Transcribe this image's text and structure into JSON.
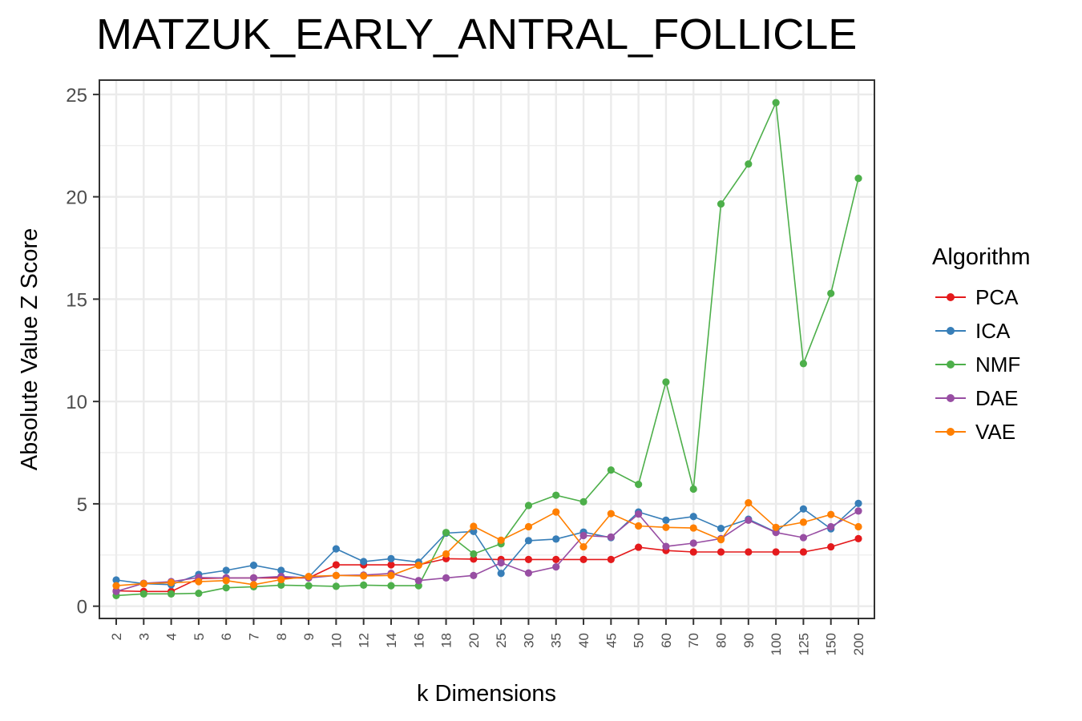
{
  "chart_data": {
    "type": "line",
    "title": "MATZUK_EARLY_ANTRAL_FOLLICLE",
    "xlabel": "k Dimensions",
    "ylabel": "Absolute Value Z Score",
    "categories": [
      "2",
      "3",
      "4",
      "5",
      "6",
      "7",
      "8",
      "9",
      "10",
      "12",
      "14",
      "16",
      "18",
      "20",
      "25",
      "30",
      "35",
      "40",
      "45",
      "50",
      "60",
      "70",
      "80",
      "90",
      "100",
      "125",
      "150",
      "200"
    ],
    "ylim": [
      -0.6,
      25.7
    ],
    "yticks": [
      0,
      5,
      10,
      15,
      20,
      25
    ],
    "grid": true,
    "legend": {
      "title": "Algorithm",
      "position": "right"
    },
    "series": [
      {
        "name": "PCA",
        "color": "#E41A1C",
        "values": [
          0.75,
          0.72,
          0.72,
          1.35,
          1.38,
          1.38,
          1.38,
          1.38,
          2.02,
          2.02,
          2.02,
          2.02,
          2.32,
          2.3,
          2.28,
          2.28,
          2.28,
          2.28,
          2.28,
          2.88,
          2.72,
          2.65,
          2.65,
          2.65,
          2.65,
          2.65,
          2.9,
          3.3
        ]
      },
      {
        "name": "ICA",
        "color": "#377EB8",
        "values": [
          1.28,
          1.1,
          1.05,
          1.55,
          1.75,
          2.0,
          1.75,
          1.42,
          2.8,
          2.18,
          2.32,
          2.15,
          3.57,
          3.65,
          1.6,
          3.2,
          3.28,
          3.62,
          3.35,
          4.6,
          4.2,
          4.38,
          3.8,
          4.25,
          3.62,
          4.75,
          3.78,
          5.02
        ]
      },
      {
        "name": "NMF",
        "color": "#4DAF4A",
        "values": [
          0.52,
          0.6,
          0.6,
          0.63,
          0.9,
          0.95,
          1.03,
          1.0,
          0.97,
          1.03,
          1.0,
          1.0,
          3.6,
          2.55,
          3.05,
          4.92,
          5.42,
          5.1,
          6.65,
          5.95,
          10.95,
          5.72,
          19.65,
          21.6,
          24.6,
          11.85,
          15.28,
          20.9
        ]
      },
      {
        "name": "DAE",
        "color": "#984EA3",
        "values": [
          0.72,
          1.12,
          1.2,
          1.4,
          1.38,
          1.38,
          1.45,
          1.38,
          1.5,
          1.52,
          1.6,
          1.25,
          1.38,
          1.5,
          2.12,
          1.62,
          1.92,
          3.45,
          3.38,
          4.5,
          2.92,
          3.08,
          3.3,
          4.2,
          3.6,
          3.35,
          3.88,
          4.65
        ]
      },
      {
        "name": "VAE",
        "color": "#FF7F00",
        "values": [
          1.0,
          1.1,
          1.15,
          1.2,
          1.25,
          1.05,
          1.3,
          1.45,
          1.5,
          1.48,
          1.5,
          2.0,
          2.55,
          3.9,
          3.22,
          3.88,
          4.6,
          2.9,
          4.52,
          3.92,
          3.85,
          3.82,
          3.25,
          5.05,
          3.85,
          4.1,
          4.48,
          3.88
        ]
      }
    ]
  }
}
